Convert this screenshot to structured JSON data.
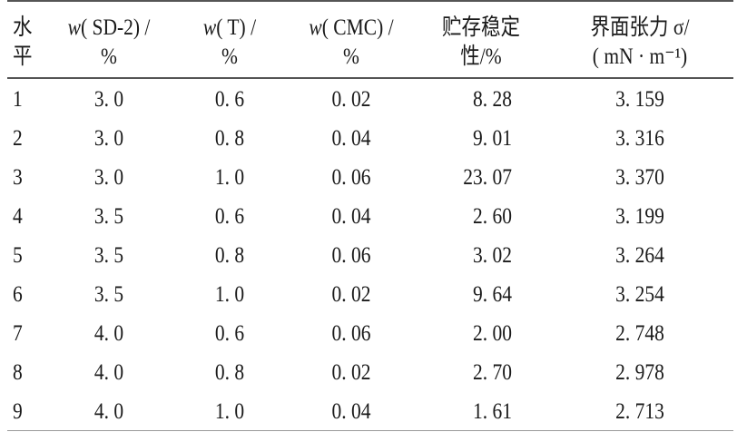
{
  "table": {
    "headers": [
      {
        "line1": "水",
        "line2": "平"
      },
      {
        "var": "w",
        "line1": "( SD-2) /",
        "line2": "%"
      },
      {
        "var": "w",
        "line1": "( T) /",
        "line2": "%"
      },
      {
        "var": "w",
        "line1": "( CMC) /",
        "line2": "%"
      },
      {
        "line1": "贮存稳定",
        "line2": "性/%"
      },
      {
        "line1": "界面张力 σ/",
        "line2": "( mN · m⁻¹)"
      }
    ],
    "rows": [
      [
        "1",
        "3. 0",
        "0. 6",
        "0. 02",
        "8. 28",
        "3. 159"
      ],
      [
        "2",
        "3. 0",
        "0. 8",
        "0. 04",
        "9. 01",
        "3. 316"
      ],
      [
        "3",
        "3. 0",
        "1. 0",
        "0. 06",
        "23. 07",
        "3. 370"
      ],
      [
        "4",
        "3. 5",
        "0. 6",
        "0. 04",
        "2. 60",
        "3. 199"
      ],
      [
        "5",
        "3. 5",
        "0. 8",
        "0. 06",
        "3. 02",
        "3. 264"
      ],
      [
        "6",
        "3. 5",
        "1. 0",
        "0. 02",
        "9. 64",
        "3. 254"
      ],
      [
        "7",
        "4. 0",
        "0. 6",
        "0. 06",
        "2. 00",
        "2. 748"
      ],
      [
        "8",
        "4. 0",
        "0. 8",
        "0. 02",
        "2. 70",
        "2. 978"
      ],
      [
        "9",
        "4. 0",
        "1. 0",
        "0. 04",
        "1. 61",
        "2. 713"
      ]
    ]
  }
}
